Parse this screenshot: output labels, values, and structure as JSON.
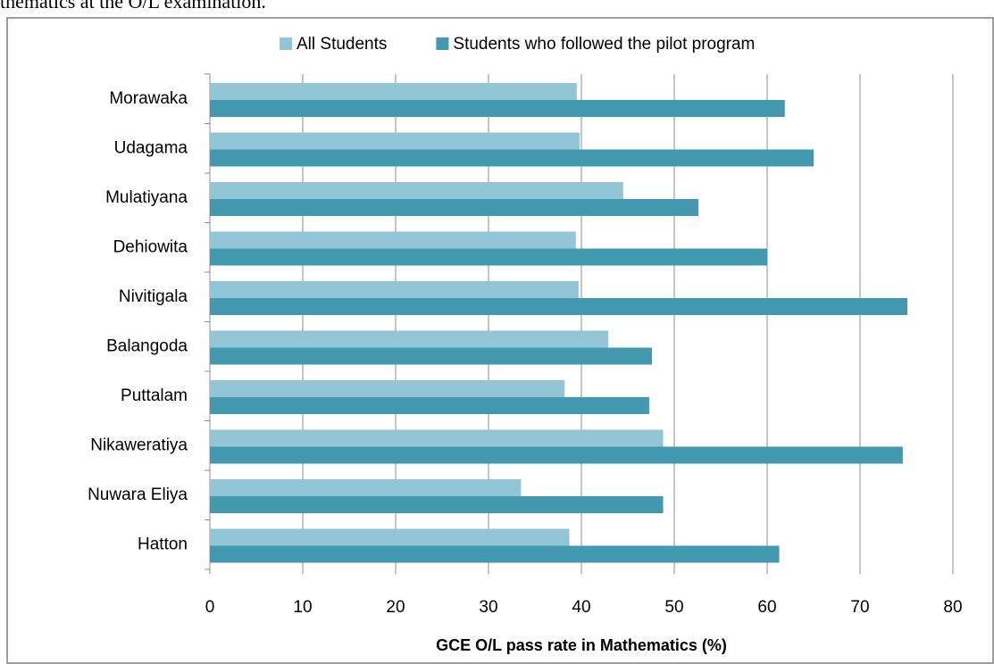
{
  "caption": "thematics at the O/L examination.",
  "chart_data": {
    "type": "bar",
    "orientation": "horizontal",
    "x_label": "GCE O/L pass rate in Mathematics (%)",
    "categories": [
      "Morawaka",
      "Udagama",
      "Mulatiyana",
      "Dehiowita",
      "Nivitigala",
      "Balangoda",
      "Puttalam",
      "Nikaweratiya",
      "Nuwara Eliya",
      "Hatton"
    ],
    "series": [
      {
        "name": "All Students",
        "color": "#92c5d5",
        "values": [
          39.5,
          39.8,
          44.5,
          39.4,
          39.7,
          42.9,
          38.2,
          48.8,
          33.5,
          38.7
        ]
      },
      {
        "name": "Students who followed the pilot program",
        "color": "#4399b0",
        "values": [
          61.9,
          65,
          52.6,
          60,
          75.1,
          47.6,
          47.3,
          74.6,
          48.8,
          61.3
        ]
      }
    ],
    "xlim": [
      0,
      80
    ],
    "xticks": [
      0,
      10,
      20,
      30,
      40,
      50,
      60,
      70,
      80
    ],
    "grid": true,
    "legend": "top"
  }
}
